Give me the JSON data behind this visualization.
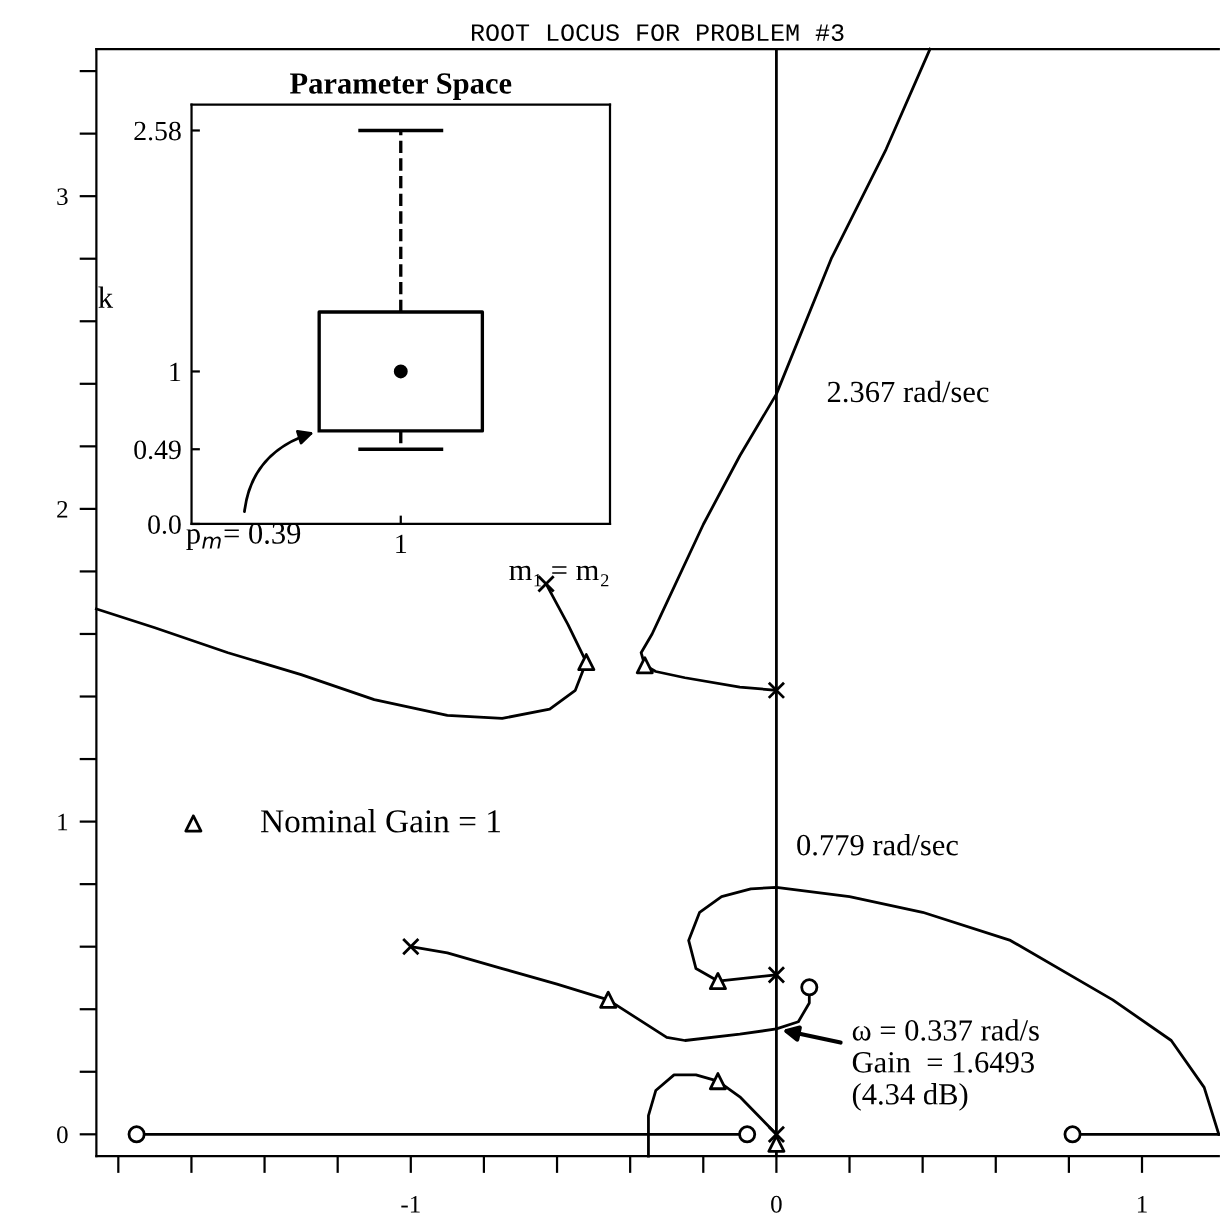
{
  "chart_data": [
    {
      "type": "line",
      "title": "ROOT LOCUS FOR PROBLEM #3",
      "xlim": [
        -1.86,
        1.21
      ],
      "ylim": [
        -0.07,
        3.47
      ],
      "xticks": [
        {
          "value": -1.8,
          "label": null
        },
        {
          "value": -1.6,
          "label": null
        },
        {
          "value": -1.4,
          "label": null
        },
        {
          "value": -1.2,
          "label": null
        },
        -1,
        {
          "value": -0.8,
          "label": null
        },
        {
          "value": -0.6,
          "label": null
        },
        {
          "value": -0.4,
          "label": null
        },
        {
          "value": -0.2,
          "label": null
        },
        0,
        {
          "value": 0.2,
          "label": null
        },
        {
          "value": 0.4,
          "label": null
        },
        {
          "value": 0.6,
          "label": null
        },
        {
          "value": 0.8,
          "label": null
        },
        1
      ],
      "yticks": [
        0,
        {
          "value": 0.2,
          "label": null
        },
        {
          "value": 0.4,
          "label": null
        },
        {
          "value": 0.6,
          "label": null
        },
        {
          "value": 0.8,
          "label": null
        },
        1,
        {
          "value": 1.2,
          "label": null
        },
        {
          "value": 1.4,
          "label": null
        },
        {
          "value": 1.6,
          "label": null
        },
        {
          "value": 1.8,
          "label": null
        },
        2,
        {
          "value": 2.2,
          "label": null
        },
        {
          "value": 2.4,
          "label": null
        },
        {
          "value": 2.6,
          "label": null
        },
        {
          "value": 2.8,
          "label": null
        },
        3,
        {
          "value": 3.2,
          "label": null
        },
        {
          "value": 3.4,
          "label": null
        }
      ],
      "grid": false,
      "legend": "left",
      "ref_lines": [
        {
          "axis": "x",
          "value": 0,
          "label": null,
          "color": "#000000"
        }
      ],
      "series": [
        {
          "color": "#000000",
          "x": [
            0,
            -0.1,
            -0.25,
            -0.33,
            -0.36,
            -0.37,
            -0.34,
            -0.32,
            -0.2,
            -0.1,
            0,
            0.15,
            0.3,
            0.42
          ],
          "values": [
            1.42,
            1.43,
            1.46,
            1.48,
            1.5,
            1.54,
            1.6,
            1.65,
            1.95,
            2.17,
            2.367,
            2.8,
            3.15,
            3.47
          ]
        },
        {
          "color": "#000000",
          "x": [
            -0.63,
            -0.57,
            -0.52,
            -0.55,
            -0.62,
            -0.75,
            -0.9,
            -1.1,
            -1.3,
            -1.5,
            -1.7,
            -1.86
          ],
          "values": [
            1.76,
            1.63,
            1.51,
            1.42,
            1.36,
            1.33,
            1.34,
            1.39,
            1.47,
            1.54,
            1.62,
            1.68
          ]
        },
        {
          "color": "#000000",
          "x": [
            -1,
            -0.9,
            -0.75,
            -0.6,
            -0.46,
            -0.38,
            -0.3,
            -0.25,
            -0.1,
            0,
            0.06,
            0.09,
            0.09
          ],
          "values": [
            0.6,
            0.58,
            0.53,
            0.48,
            0.43,
            0.37,
            0.31,
            0.3,
            0.32,
            0.337,
            0.36,
            0.42,
            0.47
          ]
        },
        {
          "color": "#000000",
          "x": [
            0,
            -0.16,
            -0.22,
            -0.24,
            -0.21,
            -0.15,
            -0.07,
            0,
            0.2,
            0.4,
            0.64,
            0.92,
            1.08,
            1.17,
            1.21
          ],
          "values": [
            0.51,
            0.49,
            0.53,
            0.62,
            0.71,
            0.76,
            0.785,
            0.79,
            0.76,
            0.71,
            0.62,
            0.43,
            0.3,
            0.15,
            0
          ]
        },
        {
          "color": "#000000",
          "x": [
            0,
            -0.05,
            -0.1,
            -0.16,
            -0.22,
            -0.28,
            -0.33,
            -0.35,
            -0.35,
            -0.35
          ],
          "values": [
            0,
            0.06,
            0.12,
            0.17,
            0.19,
            0.19,
            0.14,
            0.06,
            0,
            -0.07
          ]
        },
        {
          "color": "#000000",
          "x": [
            -1.75,
            -0.08
          ],
          "values": [
            0,
            0
          ]
        },
        {
          "color": "#000000",
          "x": [
            0.81,
            1.21
          ],
          "values": [
            0,
            0
          ]
        },
        {
          "type": "scatter",
          "marker": "cross",
          "color": "#000000",
          "x": [
            0,
            0,
            0,
            -1,
            -0.63
          ],
          "values": [
            0,
            0.51,
            1.42,
            0.6,
            1.76
          ]
        },
        {
          "type": "scatter",
          "marker": "circle",
          "color": "#000000",
          "x": [
            -1.75,
            -0.08,
            0.81,
            0.09
          ],
          "values": [
            0,
            0,
            0,
            0.47
          ]
        },
        {
          "type": "scatter",
          "marker": "triangle",
          "name": "Nominal Gain = 1",
          "color": "#000000",
          "x": [
            -0.36,
            -0.52,
            -0.46,
            -0.16,
            -0.16,
            0
          ],
          "values": [
            1.5,
            1.51,
            0.43,
            0.49,
            0.17,
            -0.03
          ]
        }
      ],
      "annotations": [
        "2.367 rad/sec",
        "0.779 rad/sec",
        "ω = 0.337 rad/s\nGain  = 1.6493\n(4.34 dB)"
      ]
    },
    {
      "type": "box",
      "title": "Parameter Space",
      "xlabel": "m₁ = m₂",
      "ylabel": "k",
      "categories": [
        "1"
      ],
      "ylim": [
        0,
        2.75
      ],
      "yticks": [
        {
          "value": 0,
          "label": "0.0"
        },
        0.49,
        1,
        2.58
      ],
      "grid": false,
      "legend": false,
      "boxes": [
        {
          "low": 0.49,
          "q1": 0.61,
          "median": 1,
          "q3": 1.39,
          "high": 2.58
        }
      ],
      "annotations": [
        "p$_{m}$= 0.39"
      ]
    }
  ]
}
